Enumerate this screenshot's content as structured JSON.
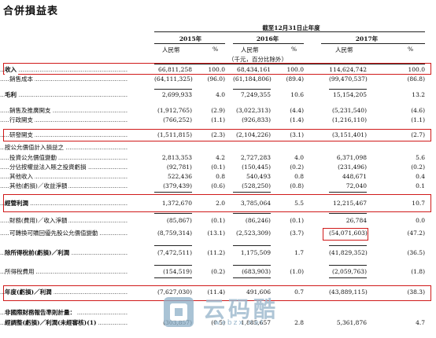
{
  "title": "合併損益表",
  "period": "截至12月31日止年度",
  "years": [
    "2015年",
    "2016年",
    "2017年"
  ],
  "unit_currency": "人民幣",
  "unit_percent": "%",
  "unit_note": "（千元，百分比除外）",
  "rows": [
    {
      "label": "收入",
      "v": [
        "66,811,258",
        "100.0",
        "68,434,161",
        "100.0",
        "114,624,742",
        "100.0"
      ]
    },
    {
      "label": "銷售成本",
      "v": [
        "(64,111,325)",
        "(96.0)",
        "(61,184,806)",
        "(89.4)",
        "(99,470,537)",
        "(86.8)"
      ]
    },
    {
      "label": "毛利",
      "v": [
        "2,699,933",
        "4.0",
        "7,249,355",
        "10.6",
        "15,154,205",
        "13.2"
      ]
    },
    {
      "label": "銷售及推廣開支",
      "v": [
        "(1,912,765)",
        "(2.9)",
        "(3,022,313)",
        "(4.4)",
        "(5,231,540)",
        "(4.6)"
      ]
    },
    {
      "label": "行政開支",
      "v": [
        "(766,252)",
        "(1.1)",
        "(926,833)",
        "(1.4)",
        "(1,216,110)",
        "(1.1)"
      ]
    },
    {
      "label": "研發開支",
      "v": [
        "(1,511,815)",
        "(2.3)",
        "(2,104,226)",
        "(3.1)",
        "(3,151,401)",
        "(2.7)"
      ]
    },
    {
      "label": "按公允價值計入損益之",
      "v": [
        "",
        "",
        "",
        "",
        "",
        ""
      ]
    },
    {
      "label": "投資公允價值變動",
      "v": [
        "2,813,353",
        "4.2",
        "2,727,283",
        "4.0",
        "6,371,098",
        "5.6"
      ]
    },
    {
      "label": "分佔按權益法入賬之投資虧損",
      "v": [
        "(92,781)",
        "(0.1)",
        "(150,445)",
        "(0.2)",
        "(231,496)",
        "(0.2)"
      ]
    },
    {
      "label": "其他收入",
      "v": [
        "522,436",
        "0.8",
        "540,493",
        "0.8",
        "448,671",
        "0.4"
      ]
    },
    {
      "label": "其他(虧損)／收益淨額",
      "v": [
        "(379,439)",
        "(0.6)",
        "(528,250)",
        "(0.8)",
        "72,040",
        "0.1"
      ]
    },
    {
      "label": "經營利潤",
      "v": [
        "1,372,670",
        "2.0",
        "3,785,064",
        "5.5",
        "12,215,467",
        "10.7"
      ]
    },
    {
      "label": "財務(費用)／收入淨額",
      "v": [
        "(85,867)",
        "(0.1)",
        "(86,246)",
        "(0.1)",
        "26,784",
        "0.0"
      ]
    },
    {
      "label": "可轉換可贖回優先股公允價值變動",
      "v": [
        "(8,759,314)",
        "(13.1)",
        "(2,523,309)",
        "(3.7)",
        "(54,071,603)",
        "(47.2)"
      ]
    },
    {
      "label": "除所得稅前(虧損)／利潤",
      "v": [
        "(7,472,511)",
        "(11.2)",
        "1,175,509",
        "1.7",
        "(41,829,352)",
        "(36.5)"
      ]
    },
    {
      "label": "所得稅費用",
      "v": [
        "(154,519)",
        "(0.2)",
        "(683,903)",
        "(1.0)",
        "(2,059,763)",
        "(1.8)"
      ]
    },
    {
      "label": "年度(虧損)／利潤",
      "v": [
        "(7,627,030)",
        "(11.4)",
        "491,606",
        "0.7",
        "(43,889,115)",
        "(38.3)"
      ]
    },
    {
      "label": "非國際財務報告準則計量：",
      "v": [
        "",
        "",
        "",
        "",
        "",
        ""
      ]
    },
    {
      "label": "經調整(虧損)／利潤(未經審核)(1)",
      "v": [
        "(303,857)",
        "(0.5)",
        "1,885,657",
        "2.8",
        "5,361,876",
        "4.7"
      ]
    }
  ],
  "watermark": {
    "text": "云码酷",
    "url": "webzx.net"
  }
}
